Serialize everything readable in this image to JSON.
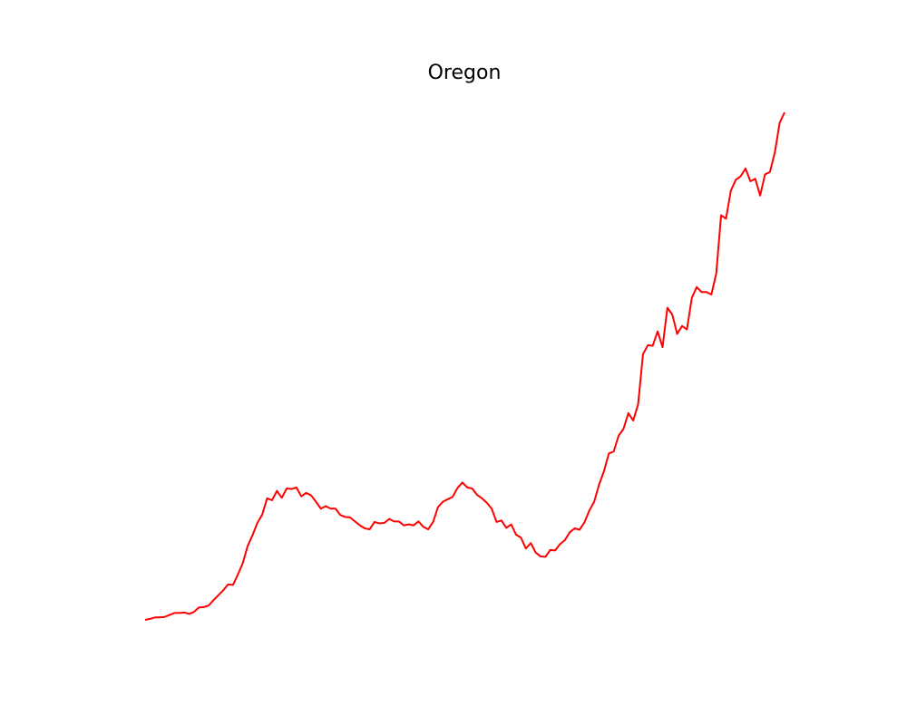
{
  "chart_data": {
    "type": "line",
    "title": "Oregon",
    "xlabel": "",
    "ylabel": "",
    "grid": false,
    "axes_visible": false,
    "legend": "none",
    "ylim": [
      0,
      100
    ],
    "series": [
      {
        "color": "#ff0000",
        "values": [
          0.0,
          0.2,
          0.5,
          0.5,
          0.6,
          1.0,
          1.4,
          1.4,
          1.5,
          1.2,
          1.6,
          2.5,
          2.6,
          2.9,
          4.0,
          5.0,
          6.0,
          7.2,
          7.1,
          9.2,
          11.5,
          15.0,
          17.2,
          19.7,
          21.4,
          24.7,
          24.3,
          26.2,
          24.8,
          26.7,
          26.6,
          26.9,
          25.1,
          25.8,
          25.3,
          24.0,
          22.6,
          23.1,
          22.6,
          22.6,
          21.3,
          20.9,
          20.8,
          20.0,
          19.2,
          18.6,
          18.4,
          19.9,
          19.6,
          19.7,
          20.5,
          20.0,
          20.0,
          19.2,
          19.4,
          19.2,
          20.0,
          18.9,
          18.4,
          19.9,
          22.9,
          24.0,
          24.5,
          25.0,
          26.8,
          27.9,
          26.9,
          26.7,
          25.4,
          24.7,
          23.8,
          22.6,
          19.9,
          20.2,
          18.7,
          19.4,
          17.3,
          16.7,
          14.5,
          15.6,
          13.7,
          12.9,
          12.8,
          14.2,
          14.1,
          15.4,
          16.2,
          17.8,
          18.6,
          18.3,
          19.8,
          22.2,
          24.0,
          27.5,
          30.2,
          33.8,
          34.2,
          37.4,
          38.8,
          42.0,
          40.5,
          43.8,
          54.0,
          55.8,
          55.7,
          58.6,
          55.4,
          63.4,
          62.0,
          58.1,
          59.7,
          59.0,
          65.4,
          67.6,
          66.6,
          66.6,
          66.1,
          70.3,
          82.2,
          81.5,
          87.2,
          89.4,
          90.1,
          91.7,
          89.1,
          89.6,
          86.2,
          90.5,
          91.0,
          94.9,
          101.0,
          103.1
        ]
      }
    ]
  }
}
